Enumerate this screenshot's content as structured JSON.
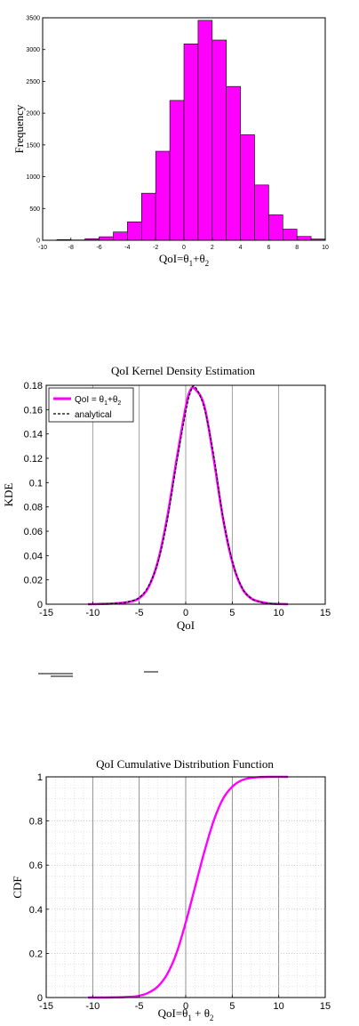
{
  "chart_data": [
    {
      "type": "bar",
      "xlabel_main": "QoI=θ",
      "xlabel_sub1": "1",
      "xlabel_mid": "+θ",
      "xlabel_sub2": "2",
      "ylabel": "Frequency",
      "xlim": [
        -10,
        10
      ],
      "ylim": [
        0,
        3500
      ],
      "xticks": [
        "-10",
        "-8",
        "-6",
        "-4",
        "-2",
        "0",
        "2",
        "4",
        "6",
        "8",
        "10"
      ],
      "yticks": [
        "0",
        "500",
        "1000",
        "1500",
        "2000",
        "2500",
        "3000",
        "3500"
      ],
      "bins": [
        {
          "x0": -9.0,
          "x1": -8.0,
          "value": 10
        },
        {
          "x0": -8.0,
          "x1": -7.0,
          "value": 5
        },
        {
          "x0": -7.0,
          "x1": -6.0,
          "value": 25
        },
        {
          "x0": -6.0,
          "x1": -5.0,
          "value": 55
        },
        {
          "x0": -5.0,
          "x1": -4.0,
          "value": 130
        },
        {
          "x0": -4.0,
          "x1": -3.0,
          "value": 290
        },
        {
          "x0": -3.0,
          "x1": -2.0,
          "value": 740
        },
        {
          "x0": -2.0,
          "x1": -1.0,
          "value": 1400
        },
        {
          "x0": -1.0,
          "x1": 0.0,
          "value": 2200
        },
        {
          "x0": 0.0,
          "x1": 1.0,
          "value": 3090
        },
        {
          "x0": 1.0,
          "x1": 2.0,
          "value": 3460
        },
        {
          "x0": 2.0,
          "x1": 3.0,
          "value": 3150
        },
        {
          "x0": 3.0,
          "x1": 4.0,
          "value": 2420
        },
        {
          "x0": 4.0,
          "x1": 5.0,
          "value": 1660
        },
        {
          "x0": 5.0,
          "x1": 6.0,
          "value": 870
        },
        {
          "x0": 6.0,
          "x1": 7.0,
          "value": 400
        },
        {
          "x0": 7.0,
          "x1": 8.0,
          "value": 175
        },
        {
          "x0": 8.0,
          "x1": 9.0,
          "value": 60
        },
        {
          "x0": 9.0,
          "x1": 10.0,
          "value": 20
        }
      ]
    },
    {
      "type": "line",
      "title": "QoI Kernel Density Estimation",
      "xlabel": "QoI",
      "ylabel": "KDE",
      "xlim": [
        -15,
        15
      ],
      "ylim": [
        0,
        0.18
      ],
      "xticks": [
        "-15",
        "-10",
        "-5",
        "0",
        "5",
        "10",
        "15"
      ],
      "yticks": [
        "0",
        "0.02",
        "0.04",
        "0.06",
        "0.08",
        "0.1",
        "0.12",
        "0.14",
        "0.16",
        "0.18"
      ],
      "grid": "x major",
      "legend_placement": "top-left",
      "legend": [
        {
          "label_main": "QoI = θ",
          "sub1": "1",
          "mid": "+θ",
          "sub2": "2",
          "color": "#ff00ff",
          "style": "solid"
        },
        {
          "label": "analytical",
          "color": "#000000",
          "style": "dashed"
        }
      ],
      "series": [
        {
          "name": "QoI = θ1+θ2",
          "x": [
            -10.5,
            -9,
            -8,
            -7,
            -6,
            -5,
            -4,
            -3,
            -2,
            -1,
            0,
            0.5,
            1,
            2,
            3,
            4,
            5,
            6,
            7,
            8,
            9,
            10,
            11
          ],
          "y": [
            0.0,
            0.0002,
            0.0005,
            0.001,
            0.002,
            0.005,
            0.014,
            0.035,
            0.071,
            0.118,
            0.162,
            0.176,
            0.177,
            0.163,
            0.12,
            0.071,
            0.035,
            0.014,
            0.005,
            0.002,
            0.0006,
            0.0002,
            0.0
          ]
        },
        {
          "name": "analytical",
          "x": [
            -10.5,
            -9,
            -8,
            -7,
            -6,
            -5,
            -4,
            -3,
            -2,
            -1,
            0,
            0.5,
            1,
            2,
            3,
            4,
            5,
            6,
            7,
            8,
            9,
            10,
            11
          ],
          "y": [
            0.0,
            0.0001,
            0.0004,
            0.001,
            0.0025,
            0.0055,
            0.015,
            0.034,
            0.068,
            0.115,
            0.158,
            0.174,
            0.179,
            0.161,
            0.123,
            0.072,
            0.036,
            0.0145,
            0.005,
            0.0018,
            0.0005,
            0.0001,
            0.0
          ]
        }
      ]
    },
    {
      "type": "line",
      "title": "QoI Cumulative Distribution Function",
      "xlabel_main": "QoI=θ",
      "xlabel_sub1": "1",
      "xlabel_mid": " + θ",
      "xlabel_sub2": "2",
      "ylabel": "CDF",
      "xlim": [
        -15,
        15
      ],
      "ylim": [
        0,
        1
      ],
      "xticks": [
        "-15",
        "-10",
        "-5",
        "0",
        "5",
        "10",
        "15"
      ],
      "yticks": [
        "0",
        "0.2",
        "0.4",
        "0.6",
        "0.8",
        "1"
      ],
      "grid": "on (major and minor)",
      "series": [
        {
          "name": "",
          "x": [
            -10.5,
            -8,
            -6,
            -5,
            -4,
            -3,
            -2,
            -1,
            0,
            1,
            2,
            3,
            4,
            5,
            6,
            7,
            8,
            9,
            11
          ],
          "y": [
            0.0,
            0.0005,
            0.003,
            0.008,
            0.022,
            0.05,
            0.105,
            0.2,
            0.34,
            0.5,
            0.66,
            0.8,
            0.9,
            0.955,
            0.984,
            0.995,
            0.999,
            1.0,
            1.0
          ]
        }
      ]
    }
  ]
}
